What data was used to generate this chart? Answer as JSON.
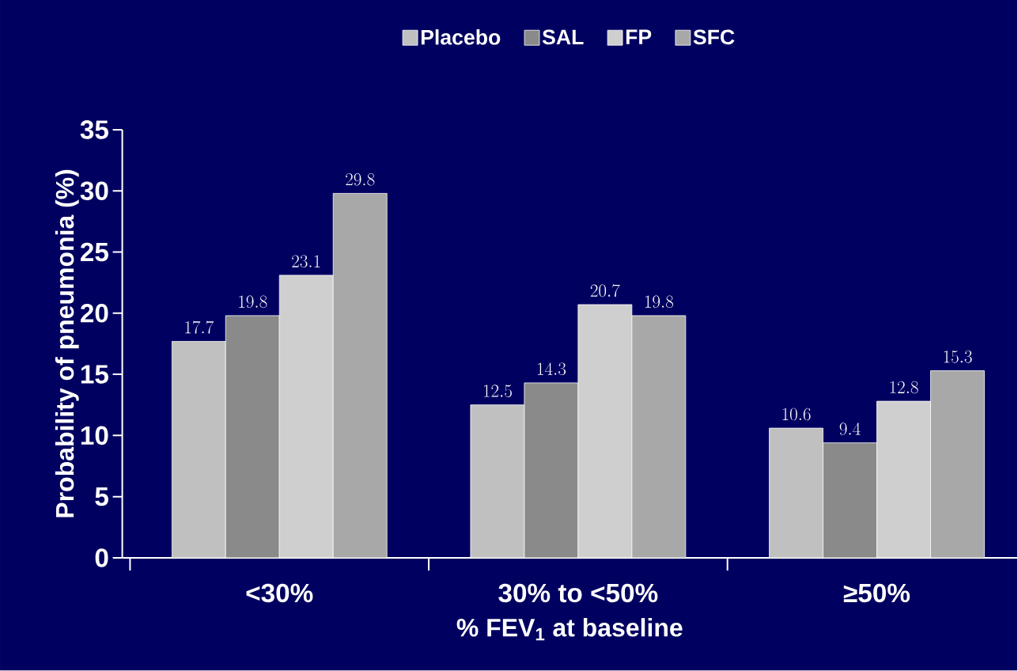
{
  "chart_data": {
    "type": "bar",
    "xlabel": "% FEV$_{1}$ at baseline",
    "ylabel": "Probability of pneumonia (%)",
    "categories": [
      "<30%",
      "30% to <50%",
      "≥50%"
    ],
    "series": [
      {
        "name": "Placebo",
        "color": "#c0c0c0",
        "values": [
          17.7,
          12.5,
          10.6
        ]
      },
      {
        "name": "SAL",
        "color": "#8a8a8a",
        "values": [
          19.8,
          14.3,
          9.4
        ]
      },
      {
        "name": "FP",
        "color": "#cfcfcf",
        "values": [
          23.1,
          20.7,
          12.8
        ]
      },
      {
        "name": "SFC",
        "color": "#a8a8a8",
        "values": [
          29.8,
          19.8,
          15.3
        ]
      }
    ],
    "ylim": [
      0,
      35
    ],
    "yticks": [
      0,
      5,
      10,
      15,
      20,
      25,
      30,
      35
    ],
    "data_labels": true,
    "legend": "top",
    "grid": false
  }
}
